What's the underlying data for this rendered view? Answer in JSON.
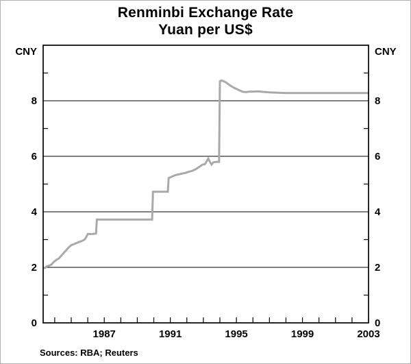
{
  "footer": {
    "sources": "Sources:  RBA; Reuters"
  },
  "chart_data": {
    "type": "line",
    "title": "Renminbi Exchange Rate",
    "subtitle": "Yuan per US$",
    "ylabel_left": "CNY",
    "ylabel_right": "CNY",
    "xlim": [
      1983.3,
      2003
    ],
    "ylim": [
      0,
      10
    ],
    "grid": "horizontal",
    "legend": "none",
    "line_color": "#a9a9a9",
    "y_gridlines": [
      2,
      4,
      6,
      8
    ],
    "y_ticks_minor": [
      1,
      3,
      5,
      7,
      9
    ],
    "y_tick_labels": [
      0,
      2,
      4,
      6,
      8
    ],
    "x_tick_labels": [
      1987,
      1991,
      1995,
      1999,
      2003
    ],
    "x_ticks_minor": [
      1984,
      1985,
      1986,
      1987,
      1988,
      1989,
      1990,
      1991,
      1992,
      1993,
      1994,
      1995,
      1996,
      1997,
      1998,
      1999,
      2000,
      2001,
      2002
    ],
    "series": [
      {
        "name": "Yuan per US$",
        "points": [
          [
            1983.3,
            1.96
          ],
          [
            1983.45,
            1.99
          ],
          [
            1983.5,
            2.03
          ],
          [
            1983.65,
            2.06
          ],
          [
            1983.8,
            2.1
          ],
          [
            1983.95,
            2.2
          ],
          [
            1984.1,
            2.27
          ],
          [
            1984.25,
            2.32
          ],
          [
            1984.4,
            2.42
          ],
          [
            1984.55,
            2.52
          ],
          [
            1984.7,
            2.62
          ],
          [
            1984.85,
            2.72
          ],
          [
            1985.0,
            2.8
          ],
          [
            1985.15,
            2.83
          ],
          [
            1985.3,
            2.87
          ],
          [
            1985.5,
            2.92
          ],
          [
            1985.65,
            2.95
          ],
          [
            1985.8,
            3.0
          ],
          [
            1985.9,
            3.08
          ],
          [
            1986.0,
            3.2
          ],
          [
            1986.3,
            3.2
          ],
          [
            1986.5,
            3.22
          ],
          [
            1986.55,
            3.72
          ],
          [
            1987.0,
            3.72
          ],
          [
            1988.0,
            3.72
          ],
          [
            1989.0,
            3.72
          ],
          [
            1989.9,
            3.72
          ],
          [
            1989.95,
            4.72
          ],
          [
            1990.5,
            4.72
          ],
          [
            1990.85,
            4.72
          ],
          [
            1990.9,
            5.22
          ],
          [
            1991.1,
            5.27
          ],
          [
            1991.3,
            5.32
          ],
          [
            1991.6,
            5.36
          ],
          [
            1991.9,
            5.4
          ],
          [
            1992.1,
            5.44
          ],
          [
            1992.3,
            5.47
          ],
          [
            1992.5,
            5.52
          ],
          [
            1992.65,
            5.58
          ],
          [
            1992.8,
            5.64
          ],
          [
            1992.95,
            5.7
          ],
          [
            1993.1,
            5.72
          ],
          [
            1993.2,
            5.82
          ],
          [
            1993.3,
            5.92
          ],
          [
            1993.4,
            5.8
          ],
          [
            1993.5,
            5.7
          ],
          [
            1993.6,
            5.78
          ],
          [
            1993.75,
            5.8
          ],
          [
            1993.95,
            5.8
          ],
          [
            1994.0,
            8.7
          ],
          [
            1994.1,
            8.73
          ],
          [
            1994.25,
            8.7
          ],
          [
            1994.4,
            8.65
          ],
          [
            1994.55,
            8.58
          ],
          [
            1994.7,
            8.52
          ],
          [
            1994.85,
            8.47
          ],
          [
            1995.0,
            8.43
          ],
          [
            1995.2,
            8.37
          ],
          [
            1995.4,
            8.32
          ],
          [
            1995.6,
            8.31
          ],
          [
            1995.8,
            8.33
          ],
          [
            1996.0,
            8.33
          ],
          [
            1996.3,
            8.34
          ],
          [
            1996.6,
            8.32
          ],
          [
            1997.0,
            8.3
          ],
          [
            1997.5,
            8.29
          ],
          [
            1998.0,
            8.28
          ],
          [
            1999.0,
            8.28
          ],
          [
            2000.0,
            8.28
          ],
          [
            2001.0,
            8.28
          ],
          [
            2002.0,
            8.28
          ],
          [
            2003.0,
            8.28
          ]
        ]
      }
    ]
  }
}
